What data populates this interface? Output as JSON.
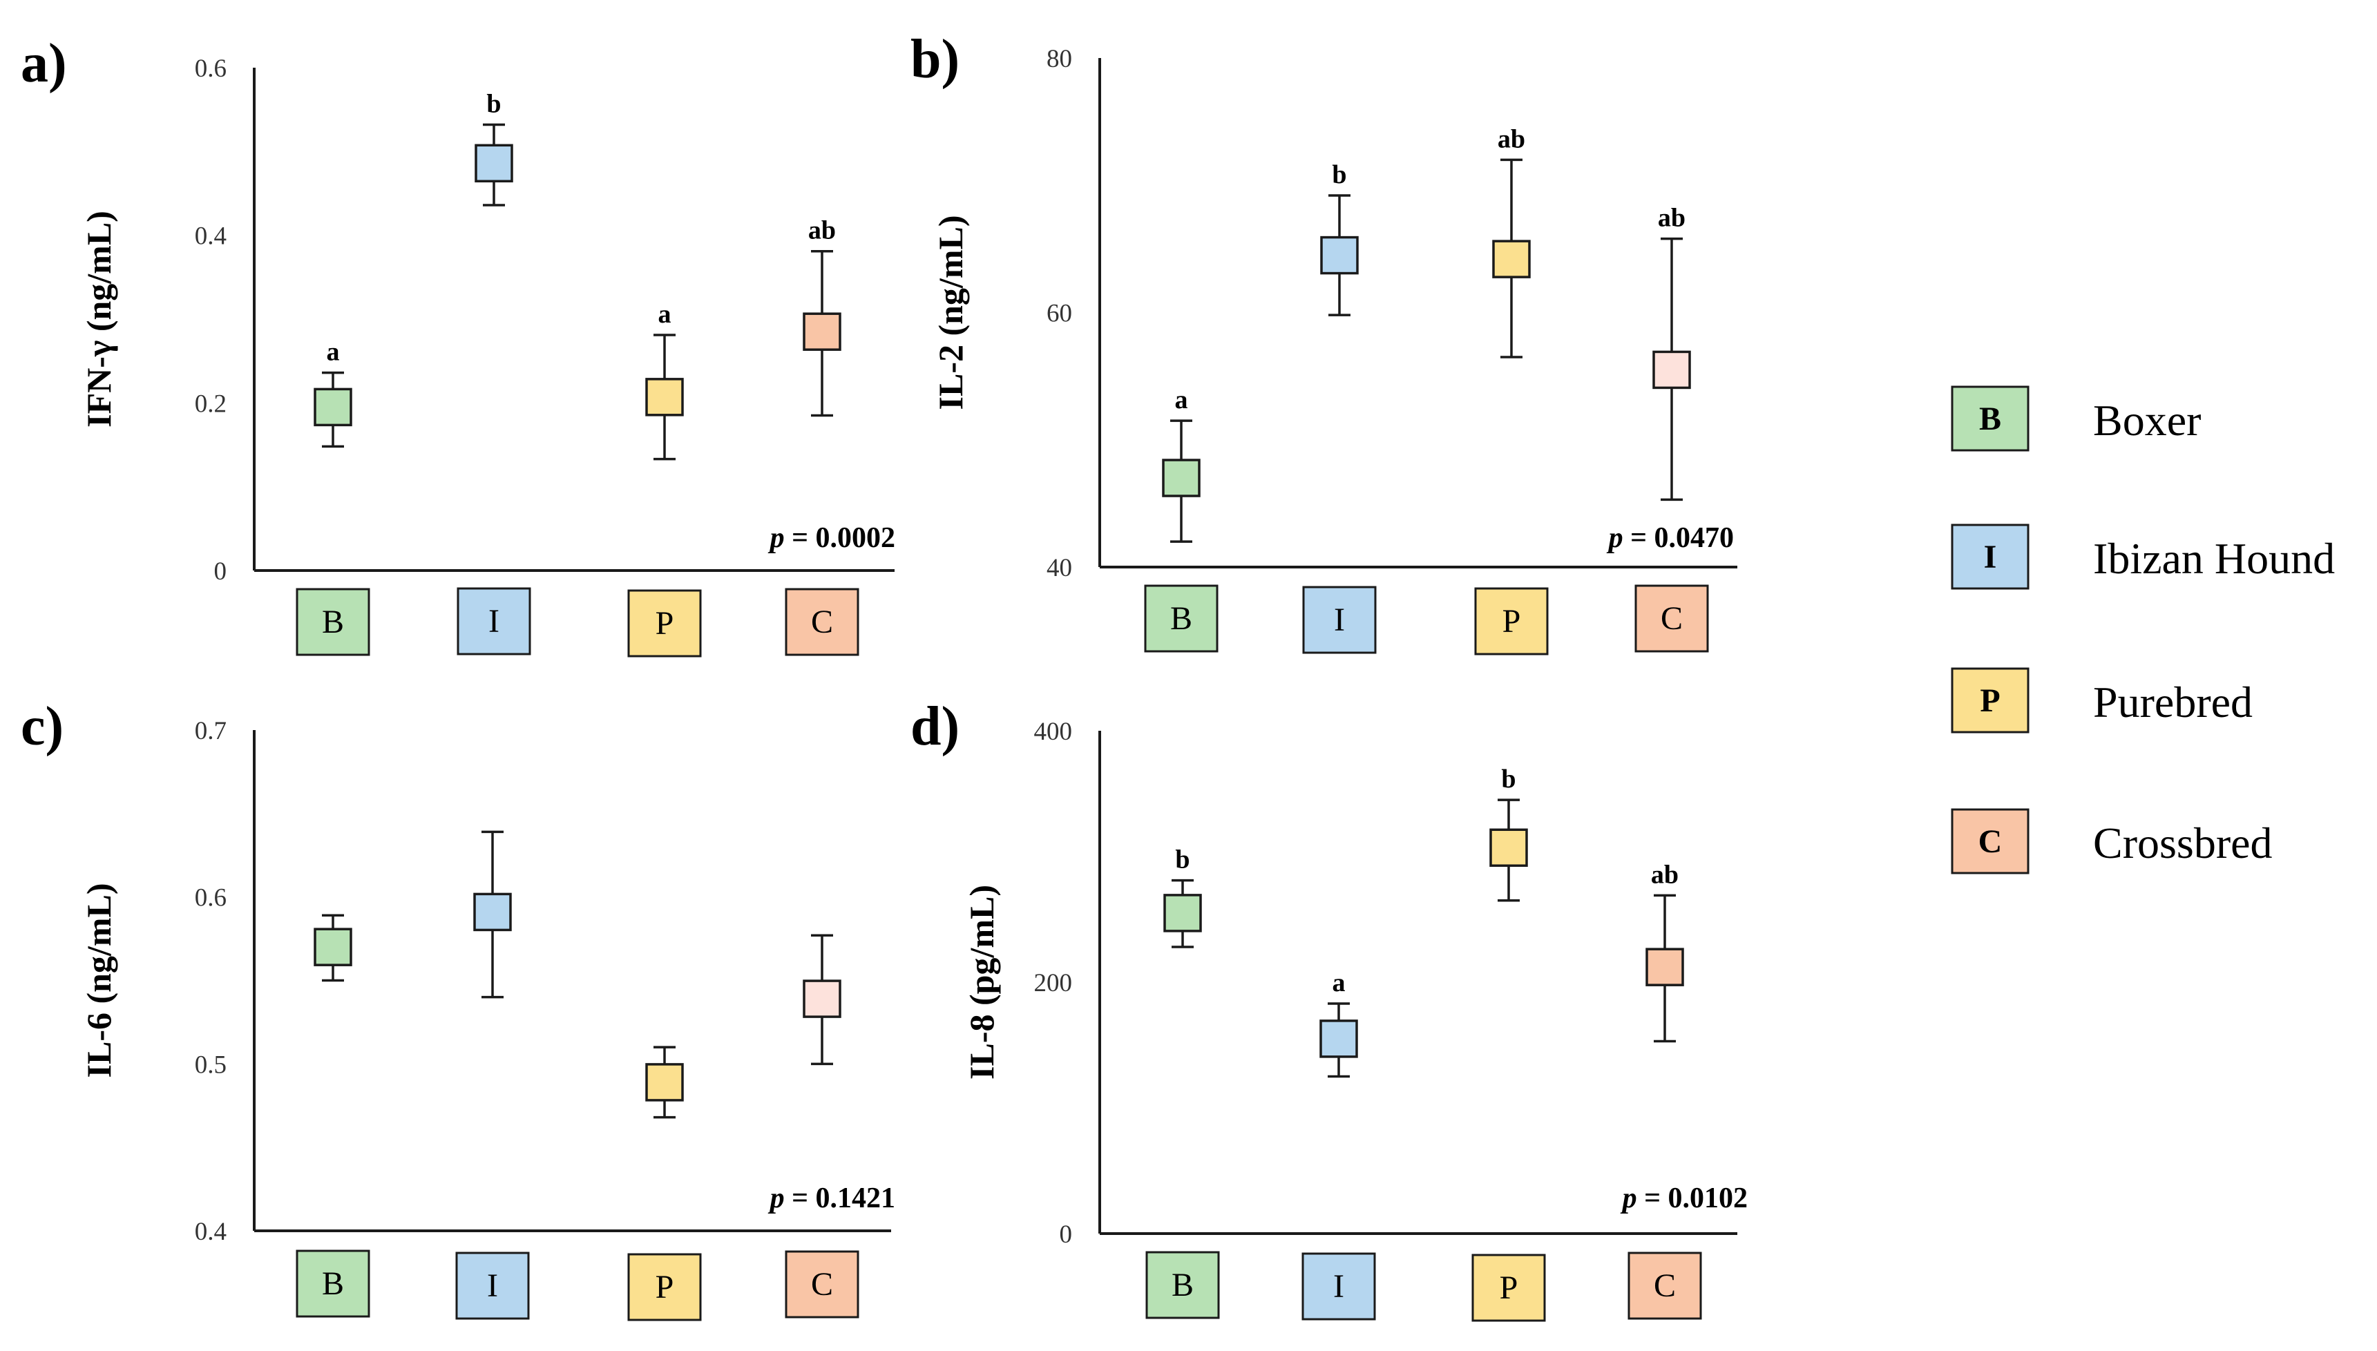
{
  "colors": {
    "boxer": "#b7e1b4",
    "ibizan": "#b5d6ef",
    "purebred": "#fbe08f",
    "crossbred": "#f9c5a6",
    "crossbred_light": "#fde2dc",
    "stroke": "#1a1a1a"
  },
  "legend": [
    {
      "letter": "B",
      "label": "Boxer",
      "color": "#b7e1b4"
    },
    {
      "letter": "I",
      "label": "Ibizan Hound",
      "color": "#b5d6ef"
    },
    {
      "letter": "P",
      "label": "Purebred",
      "color": "#fbe08f"
    },
    {
      "letter": "C",
      "label": "Crossbred",
      "color": "#f9c5a6"
    }
  ],
  "chart_data": [
    {
      "panel": "a)",
      "type": "scatter",
      "ylabel": "IFN-γ (ng/mL)",
      "ylim": [
        0,
        0.6
      ],
      "yticks": [
        "0",
        "0.2",
        "0.4",
        "0.6"
      ],
      "p_prefix": "p",
      "p_value": " = 0.0002",
      "points": [
        {
          "cat": "B",
          "value": 0.195,
          "low": 0.148,
          "high": 0.236,
          "sig": "a",
          "color": "#b7e1b4"
        },
        {
          "cat": "I",
          "value": 0.486,
          "low": 0.436,
          "high": 0.532,
          "sig": "b",
          "color": "#b5d6ef"
        },
        {
          "cat": "P",
          "value": 0.207,
          "low": 0.133,
          "high": 0.281,
          "sig": "a",
          "color": "#fbe08f"
        },
        {
          "cat": "C",
          "value": 0.285,
          "low": 0.185,
          "high": 0.381,
          "sig": "ab",
          "color": "#f9c5a6"
        }
      ]
    },
    {
      "panel": "b)",
      "type": "scatter",
      "ylabel": "IL-2 (ng/mL)",
      "ylim": [
        40,
        80
      ],
      "yticks": [
        "40",
        "60",
        "80"
      ],
      "p_prefix": "p",
      "p_value": " = 0.0470",
      "points": [
        {
          "cat": "B",
          "value": 47.0,
          "low": 42.0,
          "high": 51.5,
          "sig": "a",
          "color": "#b7e1b4"
        },
        {
          "cat": "I",
          "value": 64.5,
          "low": 59.8,
          "high": 69.2,
          "sig": "b",
          "color": "#b5d6ef"
        },
        {
          "cat": "P",
          "value": 64.2,
          "low": 56.5,
          "high": 72.0,
          "sig": "ab",
          "color": "#fbe08f"
        },
        {
          "cat": "C",
          "value": 55.5,
          "low": 45.3,
          "high": 65.8,
          "sig": "ab",
          "color": "#fde2dc"
        }
      ]
    },
    {
      "panel": "c)",
      "type": "scatter",
      "ylabel": "IL-6 (ng/mL)",
      "ylim": [
        0.4,
        0.7
      ],
      "yticks": [
        "0.4",
        "0.5",
        "0.6",
        "0.7"
      ],
      "p_prefix": "p",
      "p_value": " = 0.1421",
      "points": [
        {
          "cat": "B",
          "value": 0.57,
          "low": 0.55,
          "high": 0.589,
          "sig": "",
          "color": "#b7e1b4"
        },
        {
          "cat": "I",
          "value": 0.591,
          "low": 0.54,
          "high": 0.639,
          "sig": "",
          "color": "#b5d6ef"
        },
        {
          "cat": "P",
          "value": 0.489,
          "low": 0.468,
          "high": 0.51,
          "sig": "",
          "color": "#fbe08f"
        },
        {
          "cat": "C",
          "value": 0.539,
          "low": 0.5,
          "high": 0.577,
          "sig": "",
          "color": "#fde2dc"
        }
      ]
    },
    {
      "panel": "d)",
      "type": "scatter",
      "ylabel": "IL-8 (pg/mL)",
      "ylim": [
        0,
        400
      ],
      "yticks": [
        "0",
        "200",
        "400"
      ],
      "p_prefix": "p",
      "p_value": " = 0.0102",
      "points": [
        {
          "cat": "B",
          "value": 255,
          "low": 228,
          "high": 281,
          "sig": "b",
          "color": "#b7e1b4"
        },
        {
          "cat": "I",
          "value": 155,
          "low": 125,
          "high": 183,
          "sig": "a",
          "color": "#b5d6ef"
        },
        {
          "cat": "P",
          "value": 307,
          "low": 265,
          "high": 345,
          "sig": "b",
          "color": "#fbe08f"
        },
        {
          "cat": "C",
          "value": 212,
          "low": 153,
          "high": 269,
          "sig": "ab",
          "color": "#f9c5a6"
        }
      ]
    }
  ]
}
